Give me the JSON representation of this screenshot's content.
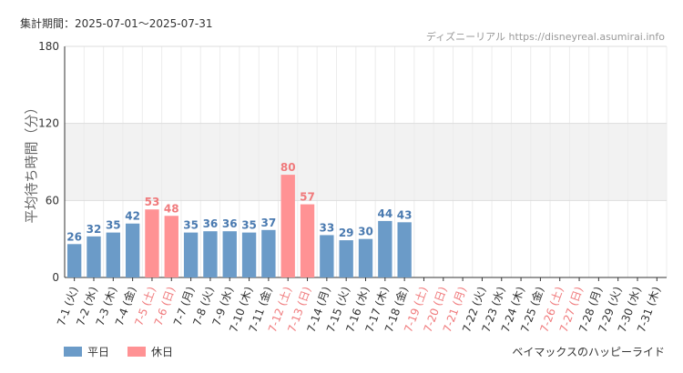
{
  "header": {
    "period": "集計期間：2025-07-01〜2025-07-31",
    "source": "ディズニーリアル https://disneyreal.asumirai.info"
  },
  "ride_name": "ベイマックスのハッピーライド",
  "legend": {
    "weekday": "平日",
    "holiday": "休日"
  },
  "colors": {
    "weekday": "#6b9bc8",
    "holiday": "#ff9294",
    "weekday_text": "#4a7ab0",
    "holiday_text": "#f07a7c"
  },
  "chart_data": {
    "type": "bar",
    "ylabel": "平均待ち時間（分）",
    "ylim": [
      0,
      180
    ],
    "yticks": [
      "0",
      "60",
      "120",
      "180"
    ],
    "categories": [
      "7-1 (火)",
      "7-2 (水)",
      "7-3 (木)",
      "7-4 (金)",
      "7-5 (土)",
      "7-6 (日)",
      "7-7 (月)",
      "7-8 (火)",
      "7-9 (水)",
      "7-10 (木)",
      "7-11 (金)",
      "7-12 (土)",
      "7-13 (日)",
      "7-14 (月)",
      "7-15 (火)",
      "7-16 (水)",
      "7-17 (木)",
      "7-18 (金)",
      "7-19 (土)",
      "7-20 (日)",
      "7-21 (月)",
      "7-22 (火)",
      "7-23 (水)",
      "7-24 (木)",
      "7-25 (金)",
      "7-26 (土)",
      "7-27 (日)",
      "7-28 (月)",
      "7-29 (火)",
      "7-30 (水)",
      "7-31 (木)"
    ],
    "values": [
      26,
      32,
      35,
      42,
      53,
      48,
      35,
      36,
      36,
      35,
      37,
      80,
      57,
      33,
      29,
      30,
      44,
      43,
      null,
      null,
      null,
      null,
      null,
      null,
      null,
      null,
      null,
      null,
      null,
      null,
      null
    ],
    "holiday": [
      false,
      false,
      false,
      false,
      true,
      true,
      false,
      false,
      false,
      false,
      false,
      true,
      true,
      false,
      false,
      false,
      false,
      false,
      true,
      true,
      true,
      false,
      false,
      false,
      false,
      true,
      true,
      false,
      false,
      false,
      false
    ]
  }
}
